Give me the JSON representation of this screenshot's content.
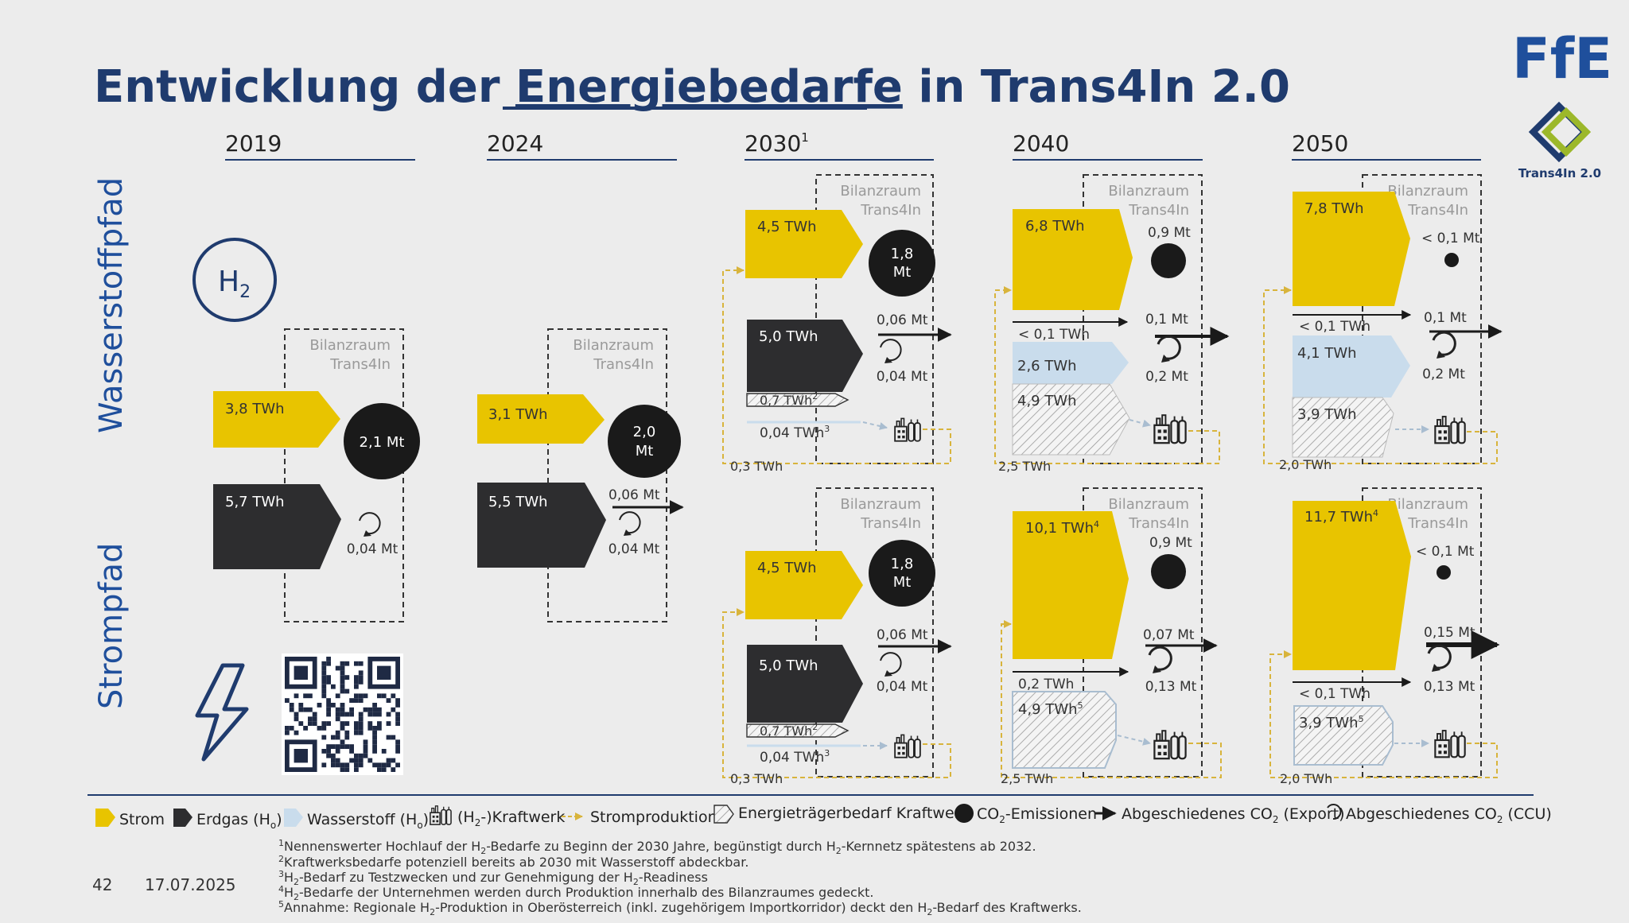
{
  "logos": {
    "ffe": "FfE",
    "trans4in": "Trans4In 2.0"
  },
  "title": {
    "part1": "Entwicklung der ",
    "part2": "Energiebedarfe",
    "part3": " in Trans4In 2.0"
  },
  "years": [
    "2019",
    "2024",
    "2030",
    "2040",
    "2050"
  ],
  "year_2030_sup": "1",
  "paths": {
    "hydrogen": "Wasserstoffpfad",
    "electric": "Strompfad"
  },
  "h2_icon": {
    "main": "H",
    "sub": "2"
  },
  "bilanzraum": {
    "line1": "Bilanzraum",
    "line2": "Trans4In"
  },
  "panels": {
    "p2019": {
      "strom": "3,8 TWh",
      "erdgas": "5,7 TWh",
      "co2": "2,1 Mt",
      "ccu": "0,04 Mt"
    },
    "p2024": {
      "strom": "3,1 TWh",
      "erdgas": "5,5 TWh",
      "co2_l1": "2,0",
      "co2_l2": "Mt",
      "export": "0,06 Mt",
      "ccu": "0,04 Mt"
    },
    "h2030": {
      "strom": "4,5 TWh",
      "erdgas": "5,0 TWh",
      "kw": "0,7 TWh",
      "kw_sup": "2",
      "wasserstoff": "0,04 TWh",
      "wasserstoff_sup": "3",
      "co2_l1": "1,8",
      "co2_l2": "Mt",
      "export": "0,06 Mt",
      "ccu": "0,04 Mt",
      "prod": "0,3 TWh"
    },
    "s2030": {
      "strom": "4,5 TWh",
      "erdgas": "5,0 TWh",
      "kw": "0,7 TWh",
      "kw_sup": "2",
      "wasserstoff": "0,04 TWh",
      "wasserstoff_sup": "3",
      "co2_l1": "1,8",
      "co2_l2": "Mt",
      "export": "0,06 Mt",
      "ccu": "0,04 Mt",
      "prod": "0,3 TWh"
    },
    "h2040": {
      "strom": "6,8 TWh",
      "erdgas": "< 0,1 TWh",
      "wasserstoff": "2,6 TWh",
      "kw": "4,9 TWh",
      "co2": "0,9 Mt",
      "export": "0,1 Mt",
      "ccu": "0,2 Mt",
      "prod": "2,5 TWh"
    },
    "s2040": {
      "strom": "10,1 TWh",
      "strom_sup": "4",
      "erdgas": "0,2 TWh",
      "wasserstoff": "4,9 TWh",
      "wasserstoff_sup": "5",
      "co2": "0,9 Mt",
      "export": "0,07 Mt",
      "ccu": "0,13 Mt",
      "prod": "2,5 TWh"
    },
    "h2050": {
      "strom": "7,8 TWh",
      "erdgas": "< 0,1 TWh",
      "wasserstoff": "4,1 TWh",
      "kw": "3,9 TWh",
      "co2": "< 0,1 Mt",
      "export": "0,1 Mt",
      "ccu": "0,2 Mt",
      "prod": "2,0 TWh"
    },
    "s2050": {
      "strom": "11,7 TWh",
      "strom_sup": "4",
      "erdgas": "< 0,1 TWh",
      "wasserstoff": "3,9 TWh",
      "wasserstoff_sup": "5",
      "co2": "< 0,1 Mt",
      "export": "0,15 Mt",
      "ccu": "0,13 Mt",
      "prod": "2,0 TWh"
    }
  },
  "legend": {
    "strom": "Strom",
    "erdgas": "Erdgas (H",
    "erdgas_sub": "o",
    "wasserstoff": "Wasserstoff (H",
    "wasserstoff_sub": "o",
    "kraftwerk": "(H",
    "kraftwerk_sub": "2",
    "kraftwerk_end": "-)Kraftwerk",
    "stromproduktion": "Stromproduktion",
    "energietraeger": "Energieträgerbedarf Kraftwerk",
    "co2": "CO",
    "co2_sub": "2",
    "co2_end": "-Emissionen",
    "export": "Abgeschiedenes CO",
    "export_sub": "2",
    "export_end": " (Export)",
    "ccu": "Abgeschiedenes CO",
    "ccu_sub": "2",
    "ccu_end": " (CCU)"
  },
  "footnotes": [
    {
      "sup": "1",
      "pre": "Nennenswerter Hochlauf der H",
      "sub": "2",
      "post": "-Bedarfe zu Beginn der 2030 Jahre, begünstigt durch H",
      "sub2": "2",
      "post2": "-Kernnetz spätestens ab 2032."
    },
    {
      "sup": "2",
      "pre": "Kraftwerksbedarfe potenziell bereits ab 2030 mit Wasserstoff abdeckbar.",
      "sub": "",
      "post": "",
      "sub2": "",
      "post2": ""
    },
    {
      "sup": "3",
      "pre": "H",
      "sub": "2",
      "post": "-Bedarf zu Testzwecken und zur Genehmigung der H",
      "sub2": "2",
      "post2": "-Readiness"
    },
    {
      "sup": "4",
      "pre": "H",
      "sub": "2",
      "post": "-Bedarfe der Unternehmen werden durch Produktion innerhalb des Bilanzraumes gedeckt.",
      "sub2": "",
      "post2": ""
    },
    {
      "sup": "5",
      "pre": "Annahme: Regionale H",
      "sub": "2",
      "post": "-Produktion in Oberösterreich (inkl. zugehörigem Importkorridor) deckt den H",
      "sub2": "2",
      "post2": "-Bedarf des Kraftwerks."
    }
  ],
  "footer": {
    "page": "42",
    "date": "17.07.2025"
  },
  "colors": {
    "navy": "#1f3b6e",
    "yellow": "#e8c400",
    "dark": "#2d2d2f",
    "light_blue": "#c9dcec",
    "green": "#9cb82a",
    "gold_line": "#d8b43c"
  }
}
